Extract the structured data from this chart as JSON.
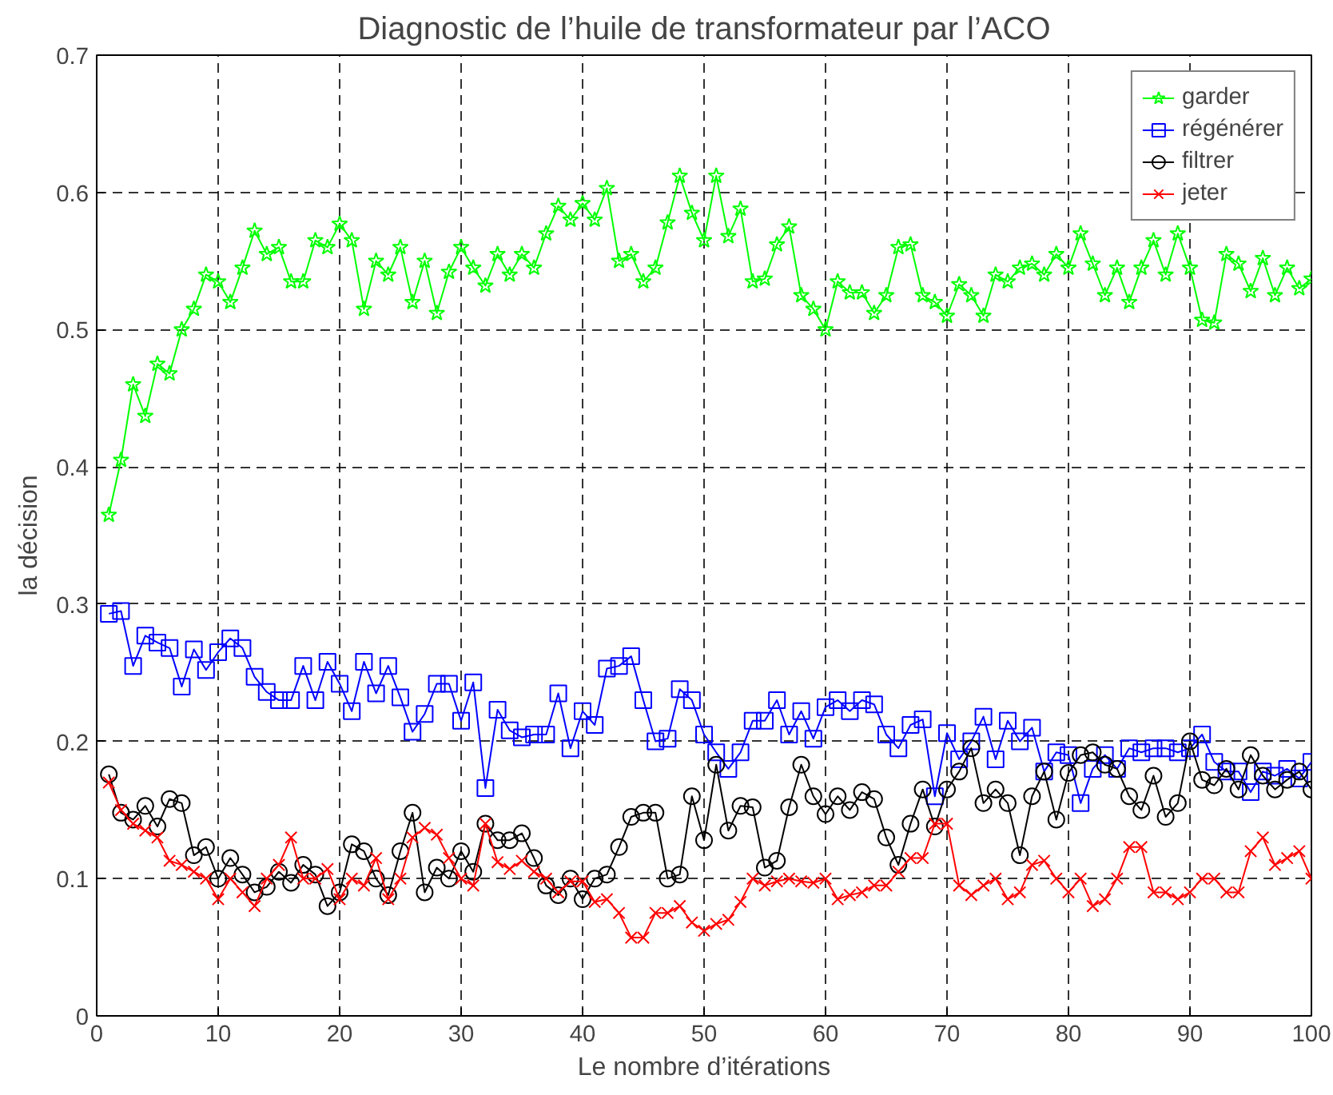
{
  "chart_data": {
    "type": "line",
    "title": "Diagnostic de l’huile de transformateur par l’ACO",
    "xlabel": "Le nombre d’itérations",
    "ylabel": "la décision",
    "x": [
      1,
      2,
      3,
      4,
      5,
      6,
      7,
      8,
      9,
      10,
      11,
      12,
      13,
      14,
      15,
      16,
      17,
      18,
      19,
      20,
      21,
      22,
      23,
      24,
      25,
      26,
      27,
      28,
      29,
      30,
      31,
      32,
      33,
      34,
      35,
      36,
      37,
      38,
      39,
      40,
      41,
      42,
      43,
      44,
      45,
      46,
      47,
      48,
      49,
      50,
      51,
      52,
      53,
      54,
      55,
      56,
      57,
      58,
      59,
      60,
      61,
      62,
      63,
      64,
      65,
      66,
      67,
      68,
      69,
      70,
      71,
      72,
      73,
      74,
      75,
      76,
      77,
      78,
      79,
      80,
      81,
      82,
      83,
      84,
      85,
      86,
      87,
      88,
      89,
      90,
      91,
      92,
      93,
      94,
      95,
      96,
      97,
      98,
      99,
      100
    ],
    "series": [
      {
        "name": "garder",
        "color": "#00ff00",
        "marker": "star",
        "values": [
          0.365,
          0.405,
          0.46,
          0.437,
          0.475,
          0.468,
          0.5,
          0.515,
          0.54,
          0.535,
          0.52,
          0.545,
          0.572,
          0.555,
          0.56,
          0.535,
          0.535,
          0.565,
          0.56,
          0.577,
          0.565,
          0.515,
          0.55,
          0.54,
          0.56,
          0.52,
          0.55,
          0.512,
          0.542,
          0.56,
          0.545,
          0.532,
          0.555,
          0.54,
          0.555,
          0.545,
          0.57,
          0.59,
          0.58,
          0.592,
          0.58,
          0.603,
          0.55,
          0.555,
          0.535,
          0.545,
          0.578,
          0.612,
          0.585,
          0.565,
          0.612,
          0.568,
          0.588,
          0.535,
          0.537,
          0.562,
          0.575,
          0.525,
          0.515,
          0.5,
          0.535,
          0.527,
          0.527,
          0.512,
          0.525,
          0.56,
          0.562,
          0.525,
          0.52,
          0.51,
          0.533,
          0.525,
          0.51,
          0.54,
          0.535,
          0.545,
          0.548,
          0.54,
          0.555,
          0.545,
          0.57,
          0.548,
          0.525,
          0.545,
          0.52,
          0.545,
          0.565,
          0.54,
          0.57,
          0.545,
          0.507,
          0.505,
          0.555,
          0.548,
          0.528,
          0.552,
          0.525,
          0.545,
          0.53,
          0.537
        ]
      },
      {
        "name": "régénérer",
        "color": "#0000ff",
        "marker": "square",
        "values": [
          0.293,
          0.295,
          0.255,
          0.277,
          0.272,
          0.268,
          0.24,
          0.267,
          0.252,
          0.265,
          0.275,
          0.268,
          0.247,
          0.236,
          0.23,
          0.23,
          0.255,
          0.23,
          0.258,
          0.242,
          0.222,
          0.258,
          0.235,
          0.255,
          0.232,
          0.207,
          0.22,
          0.242,
          0.242,
          0.215,
          0.243,
          0.166,
          0.223,
          0.208,
          0.203,
          0.205,
          0.205,
          0.235,
          0.195,
          0.222,
          0.212,
          0.253,
          0.255,
          0.262,
          0.23,
          0.2,
          0.202,
          0.238,
          0.23,
          0.205,
          0.192,
          0.18,
          0.192,
          0.215,
          0.215,
          0.23,
          0.205,
          0.222,
          0.202,
          0.225,
          0.23,
          0.222,
          0.23,
          0.227,
          0.205,
          0.195,
          0.212,
          0.216,
          0.16,
          0.206,
          0.187,
          0.2,
          0.218,
          0.187,
          0.215,
          0.2,
          0.21,
          0.178,
          0.192,
          0.19,
          0.155,
          0.18,
          0.19,
          0.18,
          0.195,
          0.192,
          0.195,
          0.195,
          0.192,
          0.195,
          0.205,
          0.185,
          0.178,
          0.178,
          0.163,
          0.178,
          0.175,
          0.18,
          0.173,
          0.185
        ]
      },
      {
        "name": "filtrer",
        "color": "#000000",
        "marker": "circle",
        "values": [
          0.176,
          0.148,
          0.143,
          0.153,
          0.138,
          0.158,
          0.155,
          0.117,
          0.123,
          0.1,
          0.115,
          0.103,
          0.09,
          0.094,
          0.105,
          0.097,
          0.11,
          0.103,
          0.08,
          0.09,
          0.125,
          0.12,
          0.1,
          0.088,
          0.12,
          0.148,
          0.09,
          0.108,
          0.1,
          0.12,
          0.105,
          0.14,
          0.128,
          0.128,
          0.133,
          0.115,
          0.095,
          0.088,
          0.1,
          0.085,
          0.1,
          0.103,
          0.123,
          0.145,
          0.148,
          0.148,
          0.1,
          0.103,
          0.16,
          0.128,
          0.183,
          0.135,
          0.153,
          0.152,
          0.108,
          0.113,
          0.152,
          0.183,
          0.16,
          0.147,
          0.16,
          0.15,
          0.163,
          0.158,
          0.13,
          0.11,
          0.14,
          0.165,
          0.138,
          0.165,
          0.178,
          0.195,
          0.155,
          0.165,
          0.155,
          0.117,
          0.16,
          0.178,
          0.143,
          0.177,
          0.19,
          0.192,
          0.183,
          0.18,
          0.16,
          0.15,
          0.175,
          0.145,
          0.155,
          0.2,
          0.172,
          0.168,
          0.18,
          0.165,
          0.19,
          0.175,
          0.165,
          0.172,
          0.178,
          0.165
        ]
      },
      {
        "name": "jeter",
        "color": "#ff0000",
        "marker": "cross",
        "values": [
          0.17,
          0.15,
          0.14,
          0.135,
          0.13,
          0.113,
          0.11,
          0.105,
          0.1,
          0.085,
          0.1,
          0.09,
          0.08,
          0.1,
          0.11,
          0.13,
          0.1,
          0.1,
          0.107,
          0.085,
          0.1,
          0.095,
          0.115,
          0.085,
          0.1,
          0.13,
          0.137,
          0.132,
          0.115,
          0.1,
          0.095,
          0.14,
          0.112,
          0.107,
          0.113,
          0.105,
          0.1,
          0.09,
          0.098,
          0.098,
          0.083,
          0.085,
          0.075,
          0.057,
          0.057,
          0.075,
          0.075,
          0.08,
          0.068,
          0.062,
          0.067,
          0.07,
          0.083,
          0.1,
          0.095,
          0.098,
          0.1,
          0.098,
          0.097,
          0.1,
          0.085,
          0.088,
          0.09,
          0.095,
          0.095,
          0.105,
          0.115,
          0.115,
          0.14,
          0.14,
          0.095,
          0.088,
          0.095,
          0.1,
          0.085,
          0.09,
          0.11,
          0.113,
          0.1,
          0.09,
          0.1,
          0.08,
          0.085,
          0.1,
          0.123,
          0.123,
          0.09,
          0.09,
          0.085,
          0.09,
          0.1,
          0.1,
          0.09,
          0.09,
          0.12,
          0.13,
          0.11,
          0.115,
          0.12,
          0.1
        ]
      }
    ],
    "xlim": [
      0,
      100
    ],
    "xticks": [
      0,
      10,
      20,
      30,
      40,
      50,
      60,
      70,
      80,
      90,
      100
    ],
    "ylim": [
      0,
      0.7
    ],
    "yticks": [
      0,
      0.1,
      0.2,
      0.3,
      0.4,
      0.5,
      0.6,
      0.7
    ],
    "grid": true,
    "legend": "top right",
    "line_style": "solid"
  }
}
